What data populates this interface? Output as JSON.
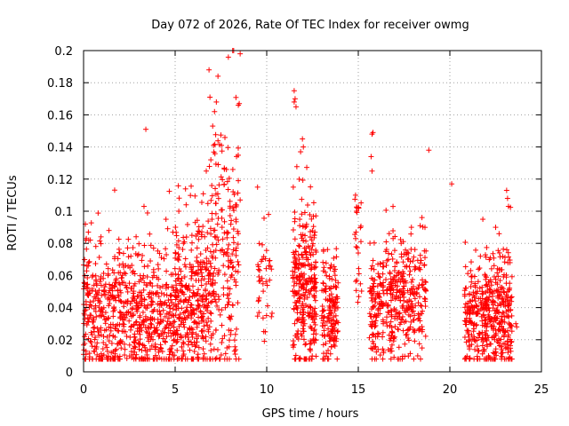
{
  "chart_data": {
    "type": "scatter",
    "title": "Day 072 of 2026, Rate Of TEC Index for receiver owmg",
    "xlabel": "GPS time / hours",
    "ylabel": "ROTI / TECUs",
    "xlim": [
      0,
      25
    ],
    "ylim": [
      0,
      0.2
    ],
    "x_ticks": [
      0,
      5,
      10,
      15,
      20,
      25
    ],
    "x_tick_labels": [
      "0",
      "5",
      "10",
      "15",
      "20",
      "25"
    ],
    "y_ticks": [
      0,
      0.02,
      0.04,
      0.06,
      0.08,
      0.1,
      0.12,
      0.14,
      0.16,
      0.18,
      0.2
    ],
    "y_tick_labels": [
      "0",
      "0.02",
      "0.04",
      "0.06",
      "0.08",
      "0.1",
      "0.12",
      "0.14",
      "0.16",
      "0.18",
      "0.2"
    ],
    "grid": true,
    "marker": "plus",
    "color": "#ff0000",
    "clusters": [
      {
        "x_range": [
          0.0,
          5.0
        ],
        "y_center": 0.035,
        "y_spread": 0.02,
        "count": 700
      },
      {
        "x_range": [
          5.0,
          7.0
        ],
        "y_center": 0.045,
        "y_spread": 0.025,
        "count": 350
      },
      {
        "x_range": [
          7.0,
          8.5
        ],
        "y_center": 0.07,
        "y_spread": 0.04,
        "count": 200
      },
      {
        "x_range": [
          9.5,
          10.3
        ],
        "y_center": 0.06,
        "y_spread": 0.015,
        "count": 40
      },
      {
        "x_range": [
          11.4,
          12.7
        ],
        "y_center": 0.05,
        "y_spread": 0.025,
        "count": 300
      },
      {
        "x_range": [
          13.0,
          13.9
        ],
        "y_center": 0.035,
        "y_spread": 0.015,
        "count": 150
      },
      {
        "x_range": [
          14.8,
          15.2
        ],
        "y_center": 0.07,
        "y_spread": 0.03,
        "count": 25
      },
      {
        "x_range": [
          15.6,
          16.4
        ],
        "y_center": 0.04,
        "y_spread": 0.015,
        "count": 120
      },
      {
        "x_range": [
          16.5,
          18.7
        ],
        "y_center": 0.045,
        "y_spread": 0.02,
        "count": 300
      },
      {
        "x_range": [
          20.8,
          23.4
        ],
        "y_center": 0.035,
        "y_spread": 0.018,
        "count": 450
      }
    ],
    "points": [
      [
        0.1,
        0.092
      ],
      [
        0.15,
        0.083
      ],
      [
        0.25,
        0.066
      ],
      [
        3.4,
        0.151
      ],
      [
        3.3,
        0.103
      ],
      [
        4.5,
        0.095
      ],
      [
        5.2,
        0.1
      ],
      [
        5.6,
        0.104
      ],
      [
        6.7,
        0.125
      ],
      [
        6.85,
        0.188
      ],
      [
        6.9,
        0.171
      ],
      [
        7.05,
        0.153
      ],
      [
        7.1,
        0.141
      ],
      [
        7.15,
        0.162
      ],
      [
        7.25,
        0.168
      ],
      [
        7.35,
        0.129
      ],
      [
        7.0,
        0.116
      ],
      [
        6.95,
        0.132
      ],
      [
        8.15,
        0.126
      ],
      [
        8.3,
        0.104
      ],
      [
        8.45,
        0.119
      ],
      [
        8.55,
        0.107
      ],
      [
        8.45,
        0.166
      ],
      [
        8.5,
        0.167
      ],
      [
        8.55,
        0.198
      ],
      [
        7.8,
        0.126
      ],
      [
        8.0,
        0.102
      ],
      [
        9.5,
        0.115
      ],
      [
        10.1,
        0.098
      ],
      [
        11.5,
        0.175
      ],
      [
        11.55,
        0.17
      ],
      [
        11.6,
        0.165
      ],
      [
        11.5,
        0.168
      ],
      [
        11.45,
        0.115
      ],
      [
        11.85,
        0.137
      ],
      [
        11.95,
        0.145
      ],
      [
        12.0,
        0.14
      ],
      [
        11.8,
        0.095
      ],
      [
        12.1,
        0.09
      ],
      [
        14.85,
        0.11
      ],
      [
        14.9,
        0.1
      ],
      [
        15.75,
        0.148
      ],
      [
        15.8,
        0.149
      ],
      [
        15.7,
        0.134
      ],
      [
        15.75,
        0.125
      ],
      [
        16.9,
        0.083
      ],
      [
        18.85,
        0.138
      ],
      [
        20.1,
        0.117
      ],
      [
        21.8,
        0.095
      ],
      [
        22.5,
        0.09
      ],
      [
        23.1,
        0.113
      ],
      [
        23.15,
        0.108
      ],
      [
        23.2,
        0.103
      ],
      [
        23.6,
        0.03
      ],
      [
        23.65,
        0.028
      ],
      [
        16.5,
        0.075
      ],
      [
        17.9,
        0.09
      ]
    ]
  }
}
